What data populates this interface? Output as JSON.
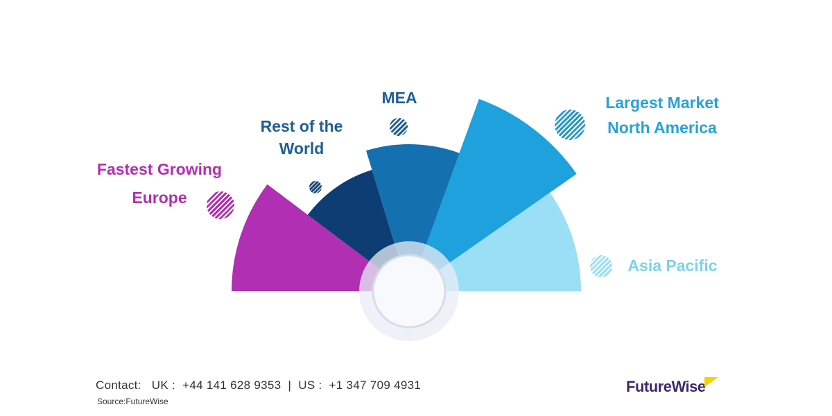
{
  "segments": [
    {
      "name": "Europe",
      "color": "#b02fb2"
    },
    {
      "name": "Rest of the World",
      "color": "#0d3d72"
    },
    {
      "name": "MEA",
      "color": "#1570b0"
    },
    {
      "name": "North America",
      "color": "#1ea1dd"
    },
    {
      "name": "Asia Pacific",
      "color": "#9adff5"
    }
  ],
  "labels": {
    "europe": {
      "line1": "Fastest Growing",
      "line2": "Europe",
      "color": "#b02fb2"
    },
    "row": {
      "line1": "Rest of the",
      "line2": "World",
      "color": "#1e5f94"
    },
    "mea": {
      "line1": "MEA",
      "color": "#1e5f94"
    },
    "north_america": {
      "line1": "Largest Market",
      "line2": "North America",
      "color": "#25a3d8"
    },
    "asia_pacific": {
      "line1": "Asia Pacific",
      "color": "#7cd2ea"
    }
  },
  "footer": {
    "contact": "Contact:   UK :  +44 141 628 9353  |  US :  +1 347 709 4931",
    "source": "Source:FutureWise",
    "logo": "FutureWise"
  }
}
